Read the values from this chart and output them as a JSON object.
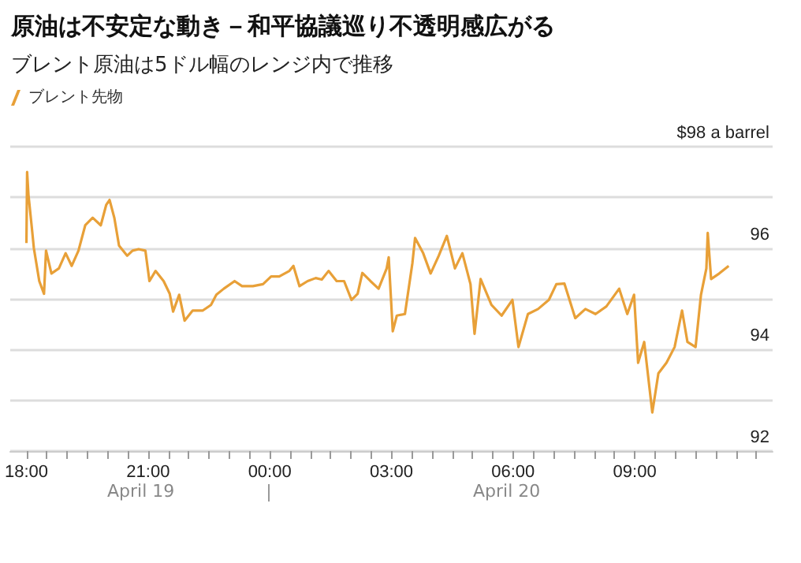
{
  "chart_data": {
    "type": "line",
    "title": "原油は不安定な動き－和平協議巡り不透明感広がる",
    "subtitle": "ブレント原油は5ドル幅のレンジ内で推移",
    "annotations": [
      "April 19",
      "April 20"
    ],
    "series": [
      {
        "name": "ブレント先物",
        "color": "#e8a038",
        "x": [
          "--04-19T18:00",
          "--04-19T18:01",
          "--04-19T18:03",
          "--04-19T18:08",
          "--04-19T18:11",
          "--04-19T18:19",
          "--04-19T18:26",
          "--04-19T18:29",
          "--04-19T18:37",
          "--04-19T18:48",
          "--04-19T18:58",
          "--04-19T19:07",
          "--04-19T19:17",
          "--04-19T19:27",
          "--04-19T19:38",
          "--04-19T19:50",
          "--04-19T19:58",
          "--04-19T20:03",
          "--04-19T20:10",
          "--04-19T20:17",
          "--04-19T20:29",
          "--04-19T20:37",
          "--04-19T20:46",
          "--04-19T20:56",
          "--04-19T21:02",
          "--04-19T21:11",
          "--04-19T21:23",
          "--04-19T21:32",
          "--04-19T21:37",
          "--04-19T21:46",
          "--04-19T21:54",
          "--04-19T22:06",
          "--04-19T22:21",
          "--04-19T22:33",
          "--04-19T22:41",
          "--04-19T22:52",
          "--04-19T23:08",
          "--04-19T23:19",
          "--04-19T23:35",
          "--04-19T23:50",
          "--04-20T00:02",
          "--04-20T00:14",
          "--04-20T00:29",
          "--04-20T00:35",
          "--04-20T00:44",
          "--04-20T00:56",
          "--04-20T01:08",
          "--04-20T01:17",
          "--04-20T01:27",
          "--04-20T01:39",
          "--04-20T01:50",
          "--04-20T02:01",
          "--04-20T02:10",
          "--04-20T02:17",
          "--04-20T02:29",
          "--04-20T02:41",
          "--04-20T02:53",
          "--04-20T02:56",
          "--04-20T03:02",
          "--04-20T03:08",
          "--04-20T03:20",
          "--04-20T03:31",
          "--04-20T03:35",
          "--04-20T03:47",
          "--04-20T03:58",
          "--04-20T04:10",
          "--04-20T04:22",
          "--04-20T04:34",
          "--04-20T04:45",
          "--04-20T04:57",
          "--04-20T05:03",
          "--04-20T05:12",
          "--04-20T05:28",
          "--04-20T05:43",
          "--04-20T05:59",
          "--04-20T06:08",
          "--04-20T06:22",
          "--04-20T06:37",
          "--04-20T06:53",
          "--04-20T07:04",
          "--04-20T07:16",
          "--04-20T07:32",
          "--04-20T07:47",
          "--04-20T08:02",
          "--04-20T08:18",
          "--04-20T08:37",
          "--04-20T08:49",
          "--04-20T08:59",
          "--04-20T09:05",
          "--04-20T09:14",
          "--04-20T09:26",
          "--04-20T09:35",
          "--04-20T09:47",
          "--04-20T09:59",
          "--04-20T10:10",
          "--04-20T10:18",
          "--04-20T10:30",
          "--04-20T10:38",
          "--04-20T10:46",
          "--04-20T10:48",
          "--04-20T10:53",
          "--04-20T11:05",
          "--04-20T11:19"
        ],
        "values": [
          96.1,
          97.5,
          97.05,
          96.4,
          96.0,
          95.35,
          95.1,
          95.95,
          95.5,
          95.6,
          95.9,
          95.65,
          95.95,
          96.45,
          96.6,
          96.45,
          96.85,
          96.95,
          96.6,
          96.05,
          95.85,
          95.95,
          95.98,
          95.95,
          95.35,
          95.55,
          95.35,
          95.1,
          94.75,
          95.08,
          94.57,
          94.77,
          94.77,
          94.88,
          95.08,
          95.2,
          95.35,
          95.25,
          95.25,
          95.29,
          95.44,
          95.44,
          95.55,
          95.65,
          95.25,
          95.35,
          95.41,
          95.38,
          95.55,
          95.35,
          95.35,
          94.98,
          95.1,
          95.51,
          95.35,
          95.2,
          95.6,
          95.82,
          94.36,
          94.67,
          94.7,
          95.7,
          96.2,
          95.9,
          95.5,
          95.85,
          96.24,
          95.6,
          95.9,
          95.29,
          94.31,
          95.39,
          94.88,
          94.67,
          94.98,
          94.05,
          94.7,
          94.8,
          94.98,
          95.29,
          95.3,
          94.62,
          94.8,
          94.7,
          94.85,
          95.2,
          94.7,
          95.08,
          93.74,
          94.15,
          92.76,
          93.53,
          93.74,
          94.05,
          94.77,
          94.15,
          94.05,
          95.08,
          95.6,
          96.3,
          95.39,
          95.5,
          95.65
        ]
      }
    ],
    "xlim": [
      "--04-19T17:36",
      "--04-20T12:24"
    ],
    "xticks": [
      {
        "value": "--04-19T18:00",
        "label": "18:00"
      },
      {
        "value": "--04-19T18:30",
        "label": null
      },
      {
        "value": "--04-19T19:00",
        "label": null
      },
      {
        "value": "--04-19T19:30",
        "label": null
      },
      {
        "value": "--04-19T20:00",
        "label": null
      },
      {
        "value": "--04-19T20:30",
        "label": null
      },
      {
        "value": "--04-19T21:00",
        "label": "21:00"
      },
      {
        "value": "--04-19T21:30",
        "label": null
      },
      {
        "value": "--04-19T22:00",
        "label": null
      },
      {
        "value": "--04-19T22:30",
        "label": null
      },
      {
        "value": "--04-19T23:00",
        "label": null
      },
      {
        "value": "--04-19T23:30",
        "label": null
      },
      {
        "value": "--04-20T00:00",
        "label": "00:00"
      },
      {
        "value": "--04-20T00:30",
        "label": null
      },
      {
        "value": "--04-20T01:00",
        "label": null
      },
      {
        "value": "--04-20T01:30",
        "label": null
      },
      {
        "value": "--04-20T02:00",
        "label": null
      },
      {
        "value": "--04-20T02:30",
        "label": null
      },
      {
        "value": "--04-20T03:00",
        "label": "03:00"
      },
      {
        "value": "--04-20T03:30",
        "label": null
      },
      {
        "value": "--04-20T04:00",
        "label": null
      },
      {
        "value": "--04-20T04:30",
        "label": null
      },
      {
        "value": "--04-20T05:00",
        "label": null
      },
      {
        "value": "--04-20T05:30",
        "label": null
      },
      {
        "value": "--04-20T06:00",
        "label": "06:00"
      },
      {
        "value": "--04-20T06:30",
        "label": null
      },
      {
        "value": "--04-20T07:00",
        "label": null
      },
      {
        "value": "--04-20T07:30",
        "label": null
      },
      {
        "value": "--04-20T08:00",
        "label": null
      },
      {
        "value": "--04-20T08:30",
        "label": null
      },
      {
        "value": "--04-20T09:00",
        "label": "09:00"
      },
      {
        "value": "--04-20T09:30",
        "label": null
      },
      {
        "value": "--04-20T10:00",
        "label": null
      },
      {
        "value": "--04-20T10:30",
        "label": null
      },
      {
        "value": "--04-20T11:00",
        "label": null
      },
      {
        "value": "--04-20T11:30",
        "label": null
      },
      {
        "value": "--04-20T12:00",
        "label": null
      }
    ],
    "ylim": [
      92,
      98
    ],
    "yticks": [
      92,
      94,
      96,
      {
        "value": 98,
        "label": "$98 a barrel"
      }
    ],
    "grid": "y",
    "legend": "top left",
    "marker": "none",
    "line_style": "solid"
  }
}
